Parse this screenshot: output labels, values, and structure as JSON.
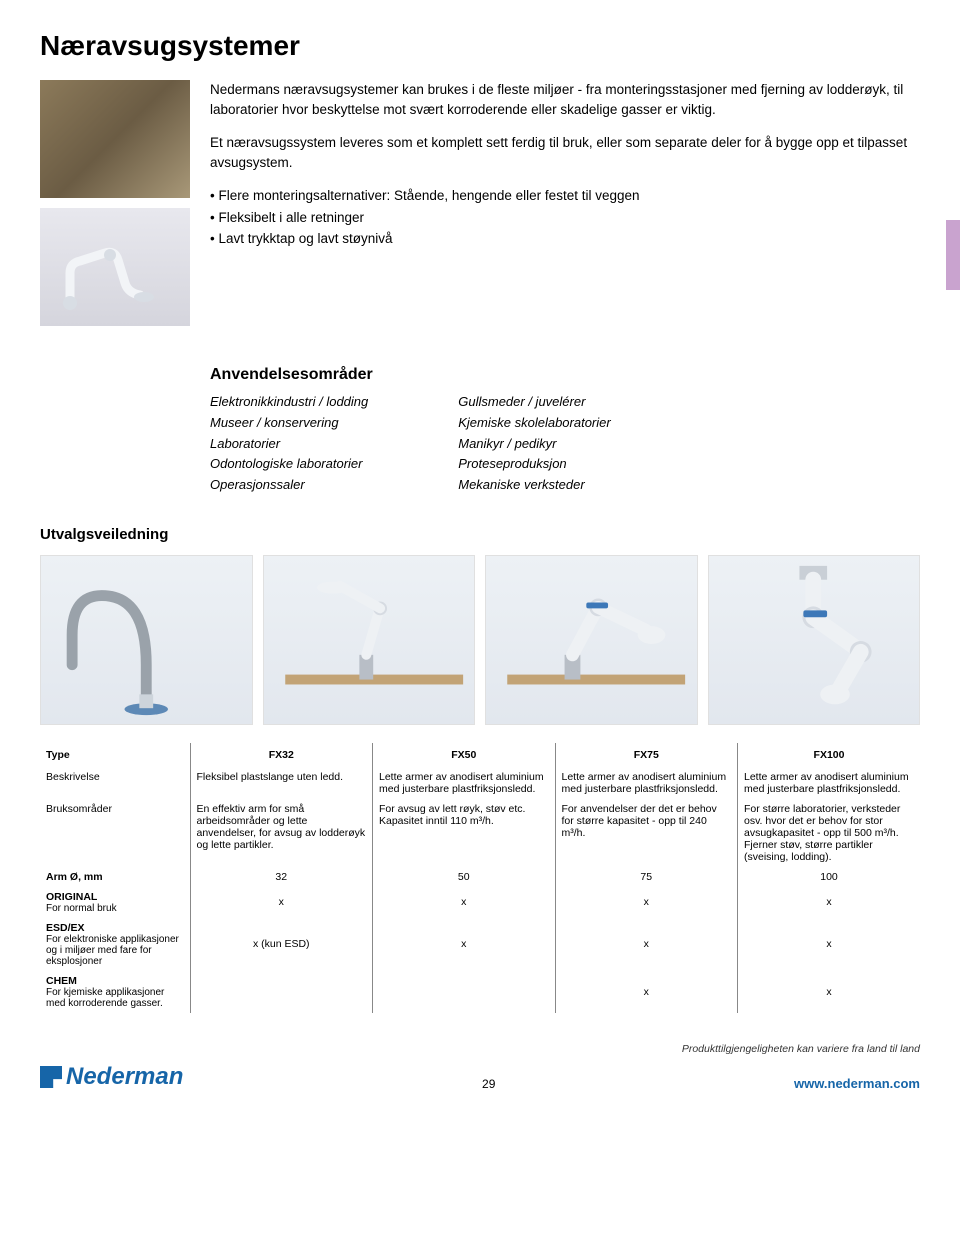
{
  "title": "Næravsugsystemer",
  "intro": {
    "p1": "Nedermans næravsugsystemer kan brukes i de fleste miljøer - fra monteringsstasjoner med fjerning av lodderøyk, til laboratorier hvor beskyttelse mot svært korroderende eller skadelige gasser er viktig.",
    "p2": "Et næravsugssystem leveres som et komplett sett ferdig til bruk, eller som separate deler for å bygge opp et tilpasset avsugsystem.",
    "bullets": [
      "Flere monteringsalternativer: Stående, hengende eller festet til veggen",
      "Fleksibelt i alle retninger",
      "Lavt trykktap og lavt støynivå"
    ]
  },
  "anv": {
    "title": "Anvendelsesområder",
    "col1": [
      "Elektronikkindustri / lodding",
      "Museer / konservering",
      "Laboratorier",
      "Odontologiske laboratorier",
      "Operasjonssaler"
    ],
    "col2": [
      "Gullsmeder / juvelérer",
      "Kjemiske skolelaboratorier",
      "Manikyr / pedikyr",
      "Proteseproduksjon",
      "Mekaniske verksteder"
    ]
  },
  "utvalg_title": "Utvalgsveiledning",
  "table": {
    "head": [
      "Type",
      "FX32",
      "FX50",
      "FX75",
      "FX100"
    ],
    "rows": [
      {
        "label": "Beskrivelse",
        "cells": [
          "Fleksibel plastslange uten ledd.",
          "Lette armer av anodisert aluminium med justerbare plastfriksjonsledd.",
          "Lette armer av anodisert aluminium med justerbare plastfriksjonsledd.",
          "Lette armer av anodisert aluminium med justerbare plastfriksjonsledd."
        ]
      },
      {
        "label": "Bruksområder",
        "cells": [
          "En effektiv arm for små arbeidsområder og lette anvendelser, for avsug av lodderøyk og lette partikler.",
          "For avsug av lett røyk, støv etc. Kapasitet inntil 110 m³/h.",
          "For anvendelser der det er behov for større kapasitet - opp til 240 m³/h.",
          "For større laboratorier, verksteder osv. hvor det er behov for stor avsugkapasitet - opp til 500 m³/h. Fjerner støv, større partikler (sveising, lodding)."
        ]
      },
      {
        "label": "Arm Ø, mm",
        "center": true,
        "cells": [
          "32",
          "50",
          "75",
          "100"
        ]
      },
      {
        "label": "ORIGINAL",
        "sub": "For normal bruk",
        "center": true,
        "cells": [
          "x",
          "x",
          "x",
          "x"
        ]
      },
      {
        "label": "ESD/EX",
        "sub": "For elektroniske applikasjoner og i miljøer med fare for eksplosjoner",
        "center": true,
        "cells": [
          "x (kun ESD)",
          "x",
          "x",
          "x"
        ]
      },
      {
        "label": "CHEM",
        "sub": "For kjemiske applikasjoner med korroderende gasser.",
        "center": true,
        "cells": [
          "",
          "",
          "x",
          "x"
        ]
      }
    ]
  },
  "footer": {
    "note": "Produkttilgjengeligheten kan variere fra land til land",
    "logo": "Nederman",
    "page": "29",
    "url": "www.nederman.com"
  },
  "colors": {
    "brand": "#1665a8",
    "side_tab": "#c9a3cf",
    "img_bg": "#e2e7ee",
    "arm_white": "#f2f4f7",
    "arm_accent": "#3d78b8",
    "table_bg": "#c2a376"
  }
}
